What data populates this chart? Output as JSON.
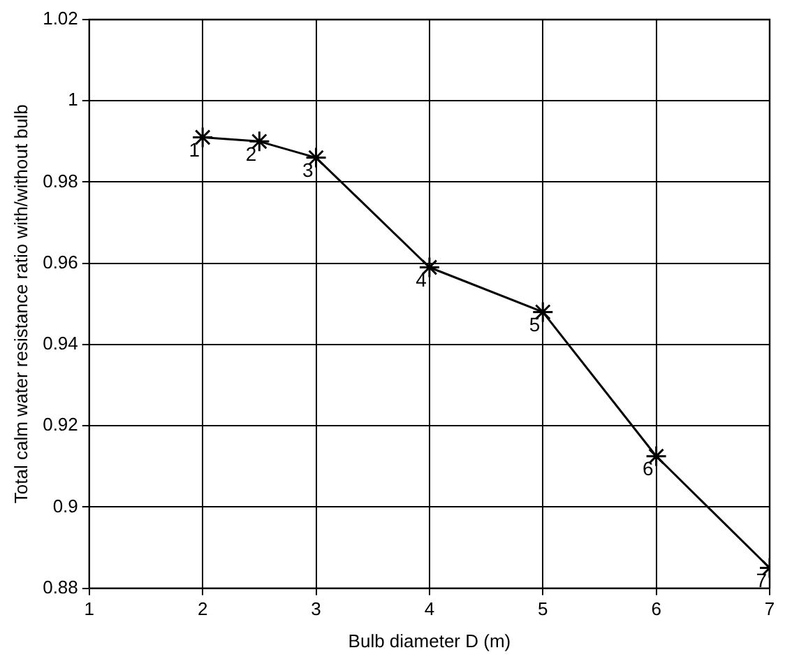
{
  "chart_data": {
    "type": "line",
    "xlabel": "Bulb diameter D (m)",
    "ylabel": "Total calm water resistance ratio with/without bulb",
    "x": [
      2,
      2.5,
      3,
      4,
      5,
      6,
      7
    ],
    "series": [
      {
        "color": "#000000",
        "values": [
          0.991,
          0.99,
          0.986,
          0.959,
          0.948,
          0.9125,
          0.885
        ]
      }
    ],
    "xlim": [
      1,
      7
    ],
    "xticks": [
      1,
      2,
      3,
      4,
      5,
      6,
      7
    ],
    "ylim": [
      0.88,
      1.02
    ],
    "yticks": [
      0.88,
      0.9,
      0.92,
      0.94,
      0.96,
      0.98,
      1,
      1.02
    ],
    "grid": true,
    "legend": false,
    "marker": "cross",
    "line_style": "solid",
    "annotations": [
      {
        "text": "1",
        "x": 2,
        "y": 0.991
      },
      {
        "text": "2",
        "x": 2.5,
        "y": 0.99
      },
      {
        "text": "3",
        "x": 3,
        "y": 0.986
      },
      {
        "text": "4",
        "x": 4,
        "y": 0.959
      },
      {
        "text": "5",
        "x": 5,
        "y": 0.948
      },
      {
        "text": "6",
        "x": 6,
        "y": 0.9125
      },
      {
        "text": "7",
        "x": 7,
        "y": 0.885
      }
    ]
  }
}
